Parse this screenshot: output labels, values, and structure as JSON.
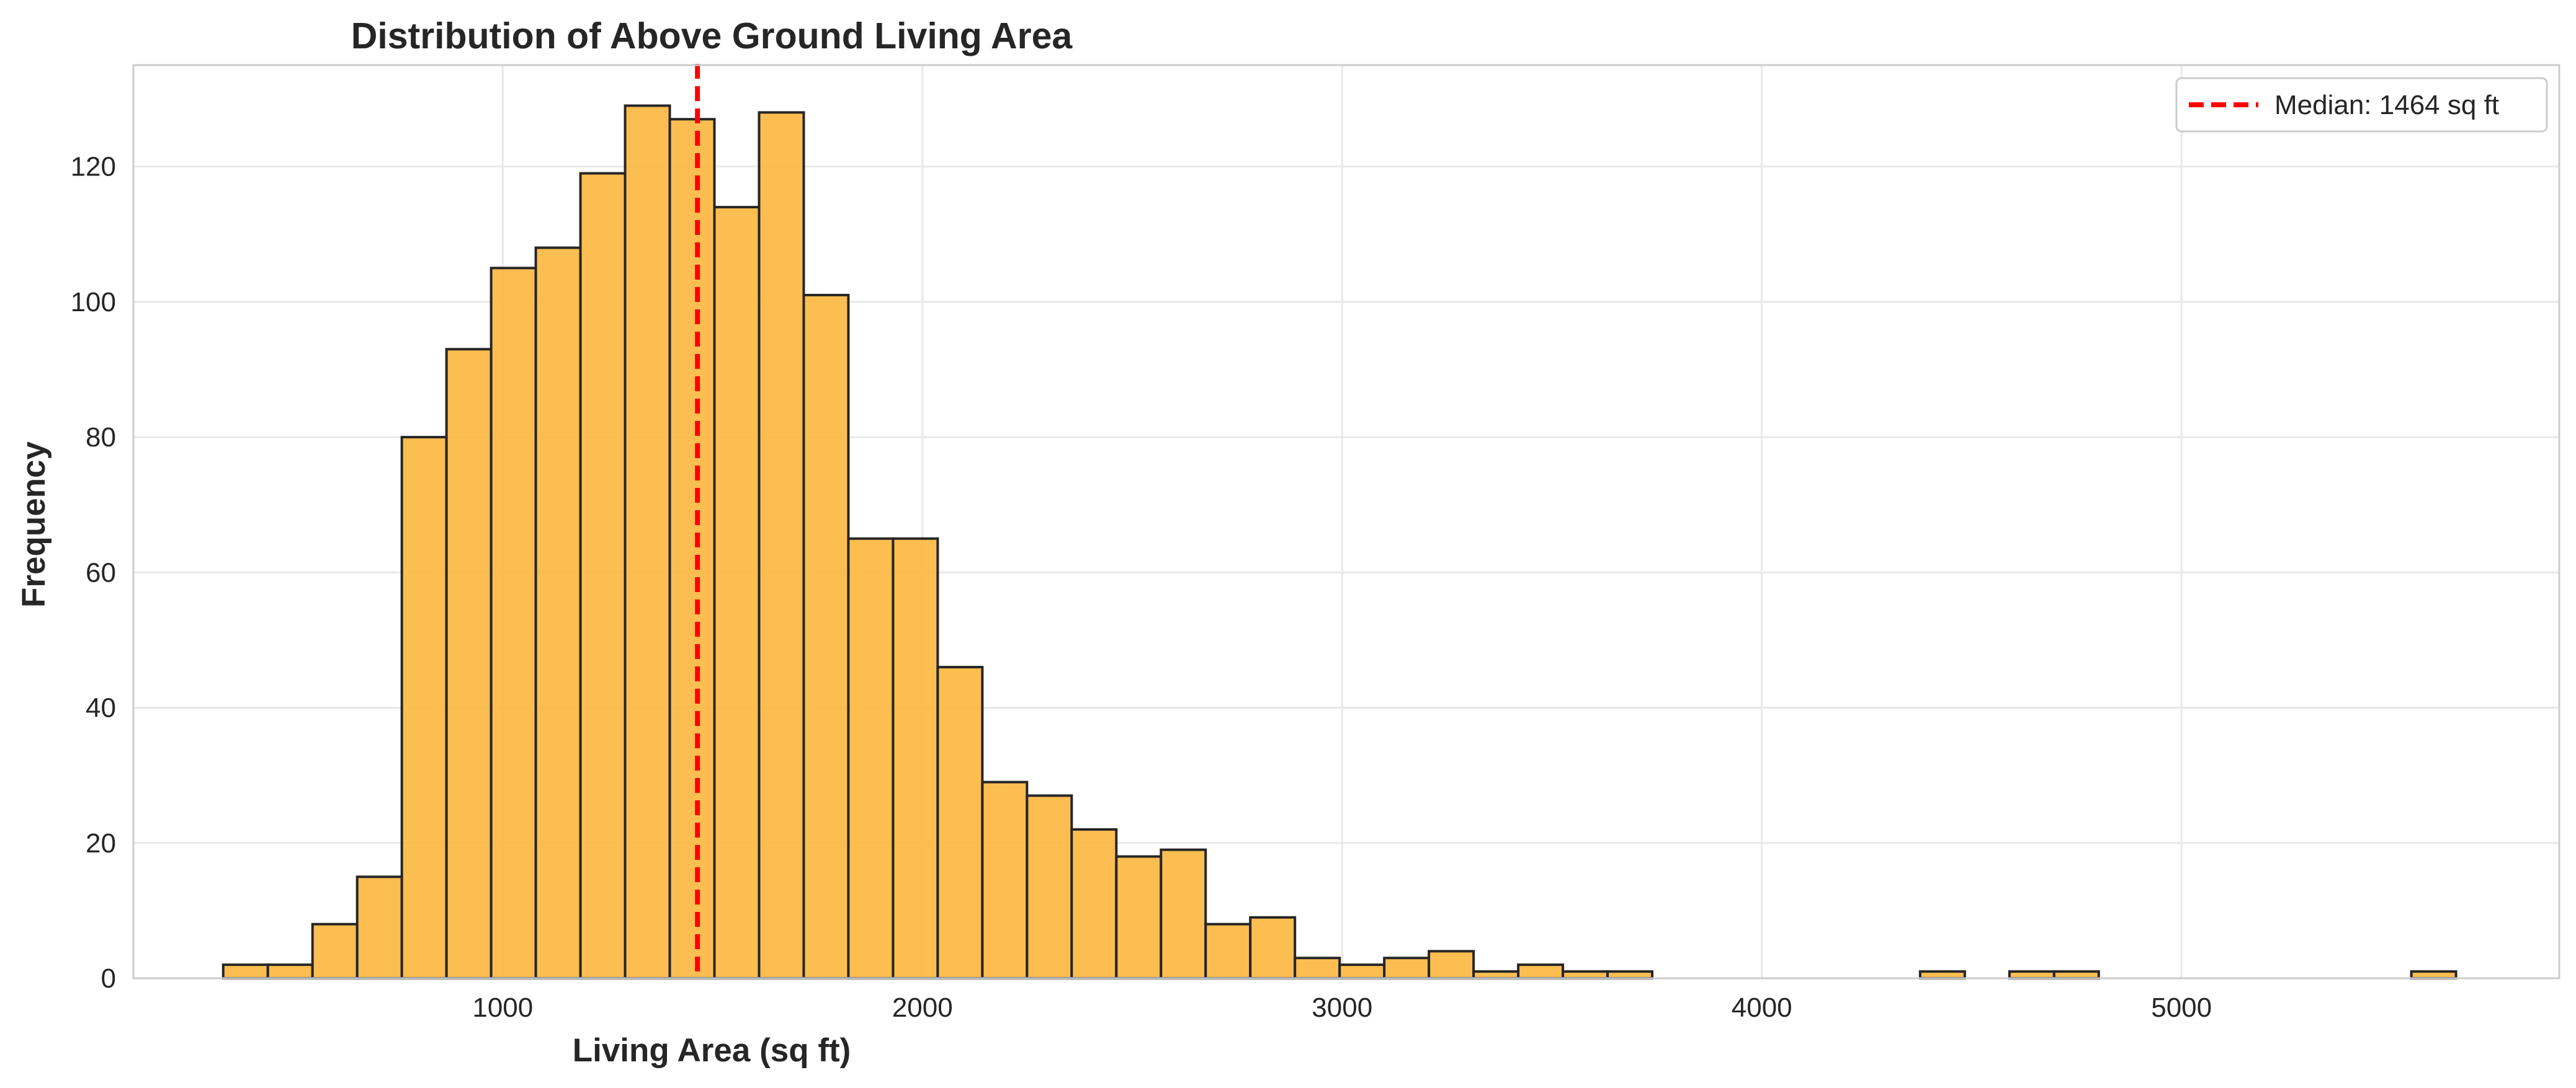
{
  "chart_data": {
    "type": "bar",
    "title": "Distribution of Above Ground Living Area",
    "xlabel": "Living Area (sq ft)",
    "ylabel": "Frequency",
    "xlim": [
      120,
      5900
    ],
    "ylim": [
      0,
      135
    ],
    "xticks": [
      1000,
      2000,
      3000,
      4000,
      5000
    ],
    "yticks": [
      0,
      20,
      40,
      60,
      80,
      100,
      120
    ],
    "grid": true,
    "bins": {
      "start": 334,
      "width": 106.4,
      "counts": [
        2,
        2,
        8,
        15,
        80,
        93,
        105,
        108,
        119,
        129,
        127,
        114,
        128,
        101,
        65,
        65,
        46,
        29,
        27,
        22,
        18,
        19,
        8,
        9,
        3,
        2,
        3,
        4,
        1,
        2,
        1,
        1,
        0,
        0,
        0,
        0,
        0,
        0,
        1,
        0,
        1,
        1,
        0,
        0,
        0,
        0,
        0,
        0,
        0,
        1
      ]
    },
    "bar_color": "#FDB73E",
    "bar_edge_color": "#262626",
    "median": {
      "value": 1464,
      "label": "Median: 1464 sq ft",
      "color": "#FF0000"
    },
    "legend_position": "top-right"
  }
}
